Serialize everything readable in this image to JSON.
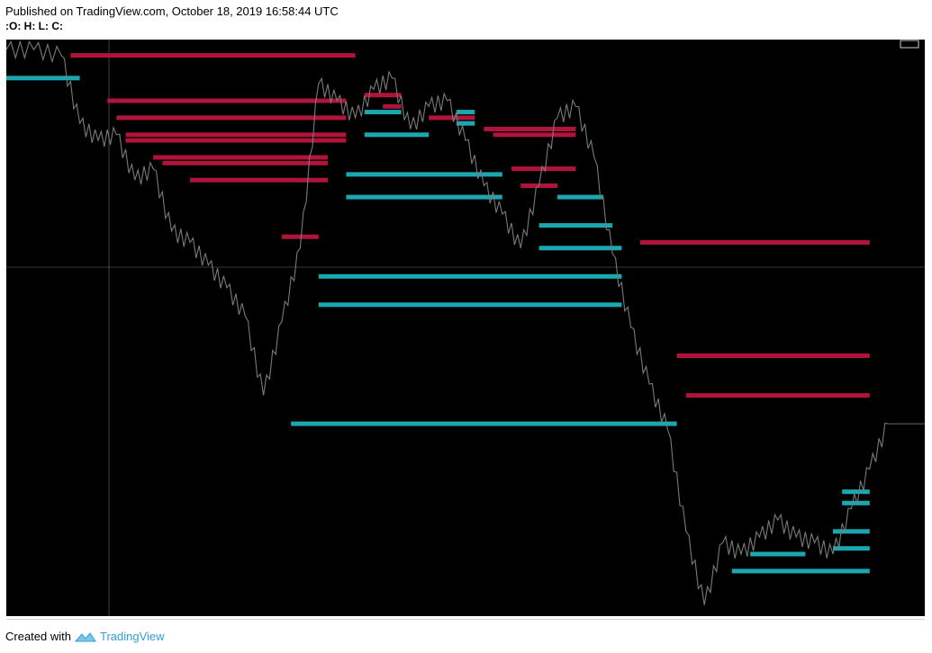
{
  "header": {
    "published": "Published on TradingView.com, October 18, 2019 16:58:44 UTC",
    "ohlc": ":O:  H:  L:  C:"
  },
  "footer": {
    "created_with": "Created with",
    "brand": "TradingView"
  },
  "colors": {
    "background": "#000000",
    "resistance": "#b1143a",
    "support": "#1aa7b0",
    "candle": "#7a7a7a",
    "crosshair": "#9e9e9e"
  },
  "chart_data": {
    "type": "line",
    "title": "",
    "xlabel": "",
    "ylabel": "",
    "grid": false,
    "ylim": [
      0,
      100
    ],
    "price_series": {
      "x": [
        0,
        3,
        6,
        8,
        10,
        12,
        14,
        16,
        18,
        20,
        22,
        24,
        26,
        28,
        30,
        32,
        34,
        36,
        38,
        40,
        42,
        44,
        46,
        48,
        50,
        52,
        54,
        56,
        58,
        60,
        62,
        64,
        66,
        68,
        70,
        72,
        74,
        76,
        78,
        80,
        82,
        84,
        86,
        88,
        90,
        92,
        94,
        96
      ],
      "y": [
        99,
        99,
        98,
        86,
        83,
        84,
        76,
        78,
        67,
        65,
        61,
        57,
        52,
        38,
        51,
        64,
        93,
        90,
        87,
        92,
        94,
        85,
        89,
        90,
        83,
        75,
        70,
        64,
        75,
        87,
        89,
        80,
        63,
        50,
        40,
        32,
        14,
        1,
        12,
        10,
        13,
        16,
        13,
        12,
        10,
        18,
        25,
        33
      ]
    },
    "resistance_levels": [
      {
        "y": 98,
        "x0": 7,
        "x1": 38
      },
      {
        "y": 90,
        "x0": 11,
        "x1": 37
      },
      {
        "y": 87,
        "x0": 12,
        "x1": 37
      },
      {
        "y": 84,
        "x0": 13,
        "x1": 37
      },
      {
        "y": 83,
        "x0": 13,
        "x1": 37
      },
      {
        "y": 80,
        "x0": 16,
        "x1": 35
      },
      {
        "y": 79,
        "x0": 17,
        "x1": 35
      },
      {
        "y": 76,
        "x0": 20,
        "x1": 35
      },
      {
        "y": 66,
        "x0": 30,
        "x1": 34
      },
      {
        "y": 91,
        "x0": 39,
        "x1": 43
      },
      {
        "y": 89,
        "x0": 41,
        "x1": 43
      },
      {
        "y": 87,
        "x0": 46,
        "x1": 51
      },
      {
        "y": 85,
        "x0": 52,
        "x1": 62
      },
      {
        "y": 84,
        "x0": 53,
        "x1": 62
      },
      {
        "y": 78,
        "x0": 55,
        "x1": 62
      },
      {
        "y": 75,
        "x0": 56,
        "x1": 60
      },
      {
        "y": 65,
        "x0": 69,
        "x1": 94
      },
      {
        "y": 45,
        "x0": 73,
        "x1": 94
      },
      {
        "y": 38,
        "x0": 74,
        "x1": 94
      }
    ],
    "support_levels": [
      {
        "y": 94,
        "x0": 0,
        "x1": 8
      },
      {
        "y": 88,
        "x0": 39,
        "x1": 43
      },
      {
        "y": 84,
        "x0": 39,
        "x1": 46
      },
      {
        "y": 86,
        "x0": 49,
        "x1": 51
      },
      {
        "y": 88,
        "x0": 49,
        "x1": 51
      },
      {
        "y": 77,
        "x0": 37,
        "x1": 54
      },
      {
        "y": 73,
        "x0": 37,
        "x1": 54
      },
      {
        "y": 59,
        "x0": 34,
        "x1": 67
      },
      {
        "y": 54,
        "x0": 34,
        "x1": 67
      },
      {
        "y": 73,
        "x0": 60,
        "x1": 65
      },
      {
        "y": 68,
        "x0": 58,
        "x1": 66
      },
      {
        "y": 64,
        "x0": 58,
        "x1": 67
      },
      {
        "y": 33,
        "x0": 31,
        "x1": 73
      },
      {
        "y": 21,
        "x0": 91,
        "x1": 94
      },
      {
        "y": 19,
        "x0": 91,
        "x1": 94
      },
      {
        "y": 14,
        "x0": 90,
        "x1": 94
      },
      {
        "y": 11,
        "x0": 90,
        "x1": 94
      },
      {
        "y": 7,
        "x0": 79,
        "x1": 94
      },
      {
        "y": 10,
        "x0": 81,
        "x1": 87
      }
    ]
  }
}
